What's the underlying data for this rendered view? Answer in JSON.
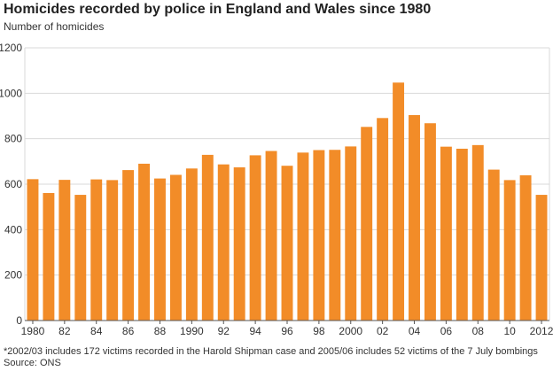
{
  "chart_data": {
    "type": "bar",
    "title": "Homicides recorded by police in England and Wales since 1980",
    "ylabel": "Number of homicides",
    "xlabel": "",
    "ylim": [
      0,
      1200
    ],
    "yticks": [
      0,
      200,
      400,
      600,
      800,
      1000,
      1200
    ],
    "grid": "horizontal",
    "bar_color": "#f28c28",
    "categories": [
      "1980",
      "1981",
      "1982",
      "1983",
      "1984",
      "1985",
      "1986",
      "1987",
      "1988",
      "1989",
      "1990",
      "1991",
      "1992",
      "1993",
      "1994",
      "1995",
      "1996",
      "1997",
      "1998",
      "1999",
      "2000",
      "2001",
      "2002",
      "2003",
      "2004",
      "2005",
      "2006",
      "2007",
      "2008",
      "2009",
      "2010",
      "2011",
      "2012"
    ],
    "xtick_labels": [
      "1980",
      "",
      "82",
      "",
      "84",
      "",
      "86",
      "",
      "88",
      "",
      "1990",
      "",
      "92",
      "",
      "94",
      "",
      "96",
      "",
      "98",
      "",
      "2000",
      "",
      "02",
      "",
      "04",
      "",
      "06",
      "",
      "08",
      "",
      "10",
      "",
      "2012"
    ],
    "values": [
      622,
      561,
      619,
      553,
      621,
      618,
      662,
      690,
      625,
      641,
      669,
      729,
      687,
      674,
      727,
      746,
      681,
      739,
      750,
      751,
      766,
      852,
      891,
      1047,
      904,
      868,
      765,
      756,
      772,
      664,
      618,
      639,
      553
    ]
  },
  "footnote": "*2002/03 includes 172 victims recorded in the Harold Shipman case and 2005/06 includes 52 victims of the 7 July bombings",
  "source": "Source: ONS"
}
